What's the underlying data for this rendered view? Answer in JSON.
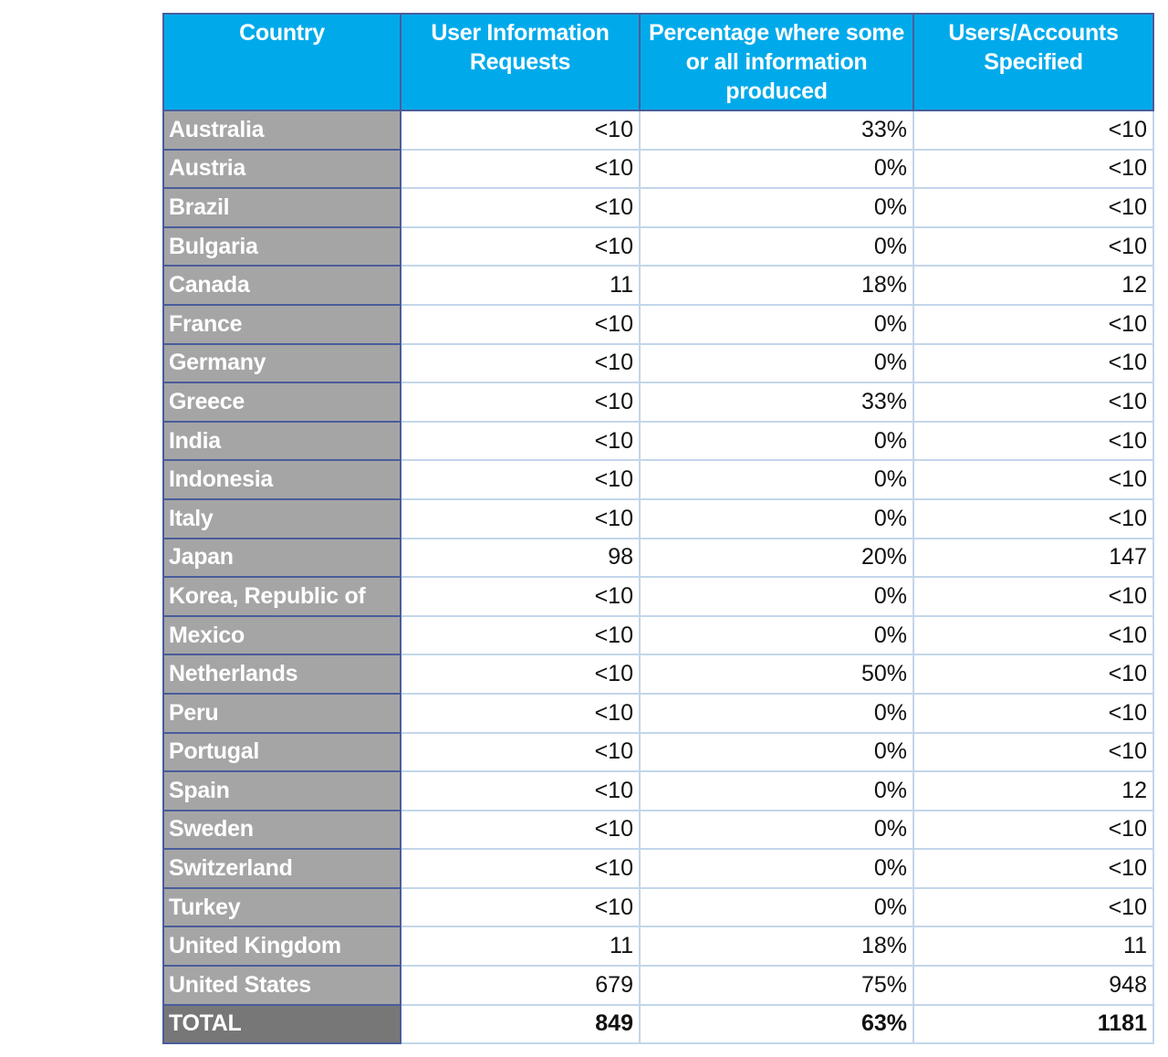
{
  "table": {
    "headers": [
      "Country",
      "User Information Requests",
      "Percentage where some or all information produced",
      "Users/Accounts Specified"
    ],
    "rows": [
      [
        "Australia",
        "<10",
        "33%",
        "<10"
      ],
      [
        "Austria",
        "<10",
        "0%",
        "<10"
      ],
      [
        "Brazil",
        "<10",
        "0%",
        "<10"
      ],
      [
        "Bulgaria",
        "<10",
        "0%",
        "<10"
      ],
      [
        "Canada",
        "11",
        "18%",
        "12"
      ],
      [
        "France",
        "<10",
        "0%",
        "<10"
      ],
      [
        "Germany",
        "<10",
        "0%",
        "<10"
      ],
      [
        "Greece",
        "<10",
        "33%",
        "<10"
      ],
      [
        "India",
        "<10",
        "0%",
        "<10"
      ],
      [
        "Indonesia",
        "<10",
        "0%",
        "<10"
      ],
      [
        "Italy",
        "<10",
        "0%",
        "<10"
      ],
      [
        "Japan",
        "98",
        "20%",
        "147"
      ],
      [
        "Korea, Republic of",
        "<10",
        "0%",
        "<10"
      ],
      [
        "Mexico",
        "<10",
        "0%",
        "<10"
      ],
      [
        "Netherlands",
        "<10",
        "50%",
        "<10"
      ],
      [
        "Peru",
        "<10",
        "0%",
        "<10"
      ],
      [
        "Portugal",
        "<10",
        "0%",
        "<10"
      ],
      [
        "Spain",
        "<10",
        "0%",
        "12"
      ],
      [
        "Sweden",
        "<10",
        "0%",
        "<10"
      ],
      [
        "Switzerland",
        "<10",
        "0%",
        "<10"
      ],
      [
        "Turkey",
        "<10",
        "0%",
        "<10"
      ],
      [
        "United Kingdom",
        "11",
        "18%",
        "11"
      ],
      [
        "United States",
        "679",
        "75%",
        "948"
      ]
    ],
    "total": [
      "TOTAL",
      "849",
      "63%",
      "1181"
    ]
  },
  "colors": {
    "header": "#00aaea",
    "country_cell": "#a5a5a5",
    "total_cell": "#777777",
    "border": "#4a5c9c"
  }
}
